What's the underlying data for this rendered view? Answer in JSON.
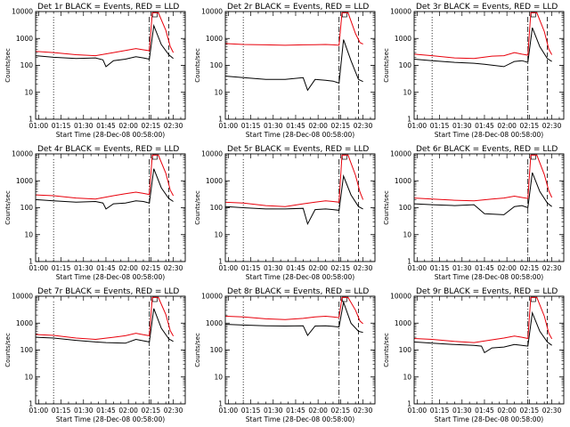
{
  "figure": {
    "xlabel": "Start Time (28-Dec-08 00:58:00)",
    "ylabel": "Counts/sec",
    "colors": {
      "events": "#000000",
      "lld": "#e8000b",
      "axes": "#000000"
    },
    "x_ticks": [
      "01:00",
      "01:15",
      "01:30",
      "01:45",
      "02:00",
      "02:15",
      "02:30"
    ],
    "y_ticks": [
      "1",
      "10",
      "100",
      "1000",
      "10000"
    ]
  },
  "chart_data": [
    {
      "type": "line",
      "title": "Det 1r BLACK = Events, RED = LLD",
      "xlim": [
        "00:58",
        "02:38"
      ],
      "ylim": [
        1,
        10000
      ],
      "yscale": "log",
      "series": [
        {
          "name": "Events",
          "color": "#000000",
          "x": [
            "00:58",
            "01:10",
            "01:25",
            "01:38",
            "01:43",
            "01:45",
            "01:50",
            "01:58",
            "02:05",
            "02:10",
            "02:14",
            "02:17",
            "02:22",
            "02:27",
            "02:30"
          ],
          "y": [
            230,
            200,
            180,
            190,
            160,
            90,
            150,
            170,
            210,
            190,
            170,
            3000,
            600,
            250,
            180
          ]
        },
        {
          "name": "LLD",
          "color": "#e8000b",
          "x": [
            "00:58",
            "01:10",
            "01:25",
            "01:38",
            "01:50",
            "01:58",
            "02:05",
            "02:10",
            "02:14",
            "02:16",
            "02:20",
            "02:25",
            "02:28",
            "02:30"
          ],
          "y": [
            330,
            300,
            250,
            230,
            300,
            360,
            420,
            380,
            350,
            9000,
            9000,
            2000,
            500,
            300
          ]
        }
      ]
    },
    {
      "type": "line",
      "title": "Det 2r BLACK = Events, RED = LLD",
      "xlim": [
        "00:58",
        "02:38"
      ],
      "ylim": [
        1,
        10000
      ],
      "yscale": "log",
      "series": [
        {
          "name": "Events",
          "color": "#000000",
          "x": [
            "00:58",
            "01:10",
            "01:25",
            "01:38",
            "01:50",
            "01:53",
            "01:58",
            "02:05",
            "02:10",
            "02:14",
            "02:17",
            "02:22",
            "02:27",
            "02:30"
          ],
          "y": [
            40,
            35,
            30,
            30,
            35,
            12,
            30,
            28,
            26,
            22,
            900,
            150,
            30,
            25
          ]
        },
        {
          "name": "LLD",
          "color": "#e8000b",
          "x": [
            "00:58",
            "01:10",
            "01:25",
            "01:38",
            "01:50",
            "01:58",
            "02:05",
            "02:10",
            "02:14",
            "02:16",
            "02:20",
            "02:25",
            "02:28",
            "02:30"
          ],
          "y": [
            650,
            600,
            580,
            560,
            580,
            590,
            600,
            580,
            560,
            9000,
            9000,
            1500,
            700,
            620
          ]
        }
      ]
    },
    {
      "type": "line",
      "title": "Det 3r BLACK = Events, RED = LLD",
      "xlim": [
        "00:58",
        "02:38"
      ],
      "ylim": [
        1,
        10000
      ],
      "yscale": "log",
      "series": [
        {
          "name": "Events",
          "color": "#000000",
          "x": [
            "00:58",
            "01:10",
            "01:25",
            "01:38",
            "01:45",
            "01:58",
            "02:05",
            "02:10",
            "02:14",
            "02:17",
            "02:22",
            "02:27",
            "02:30"
          ],
          "y": [
            170,
            150,
            130,
            120,
            110,
            90,
            140,
            150,
            130,
            2500,
            500,
            180,
            140
          ]
        },
        {
          "name": "LLD",
          "color": "#e8000b",
          "x": [
            "00:58",
            "01:10",
            "01:25",
            "01:38",
            "01:50",
            "01:58",
            "02:05",
            "02:10",
            "02:14",
            "02:16",
            "02:20",
            "02:25",
            "02:28",
            "02:30"
          ],
          "y": [
            260,
            230,
            190,
            180,
            220,
            230,
            300,
            260,
            240,
            9000,
            9000,
            1800,
            400,
            250
          ]
        }
      ]
    },
    {
      "type": "line",
      "title": "Det 4r BLACK = Events, RED = LLD",
      "xlim": [
        "00:58",
        "02:38"
      ],
      "ylim": [
        1,
        10000
      ],
      "yscale": "log",
      "series": [
        {
          "name": "Events",
          "color": "#000000",
          "x": [
            "00:58",
            "01:10",
            "01:25",
            "01:38",
            "01:43",
            "01:45",
            "01:50",
            "01:58",
            "02:05",
            "02:10",
            "02:14",
            "02:17",
            "02:22",
            "02:27",
            "02:30"
          ],
          "y": [
            200,
            180,
            160,
            170,
            150,
            90,
            140,
            150,
            180,
            170,
            150,
            2800,
            550,
            220,
            170
          ]
        },
        {
          "name": "LLD",
          "color": "#e8000b",
          "x": [
            "00:58",
            "01:10",
            "01:25",
            "01:38",
            "01:50",
            "01:58",
            "02:05",
            "02:10",
            "02:14",
            "02:16",
            "02:20",
            "02:25",
            "02:28",
            "02:30"
          ],
          "y": [
            300,
            280,
            230,
            210,
            280,
            330,
            380,
            340,
            310,
            9000,
            9000,
            1900,
            450,
            280
          ]
        }
      ]
    },
    {
      "type": "line",
      "title": "Det 5r BLACK = Events, RED = LLD",
      "xlim": [
        "00:58",
        "02:38"
      ],
      "ylim": [
        1,
        10000
      ],
      "yscale": "log",
      "series": [
        {
          "name": "Events",
          "color": "#000000",
          "x": [
            "00:58",
            "01:10",
            "01:25",
            "01:38",
            "01:50",
            "01:53",
            "01:58",
            "02:05",
            "02:10",
            "02:14",
            "02:17",
            "02:22",
            "02:27",
            "02:30"
          ],
          "y": [
            110,
            100,
            90,
            90,
            95,
            25,
            85,
            90,
            85,
            80,
            1500,
            300,
            110,
            90
          ]
        },
        {
          "name": "LLD",
          "color": "#e8000b",
          "x": [
            "00:58",
            "01:10",
            "01:25",
            "01:38",
            "01:50",
            "01:58",
            "02:05",
            "02:10",
            "02:14",
            "02:16",
            "02:20",
            "02:25",
            "02:28",
            "02:30"
          ],
          "y": [
            160,
            150,
            120,
            110,
            140,
            160,
            180,
            170,
            160,
            9000,
            9000,
            1600,
            380,
            200
          ]
        }
      ]
    },
    {
      "type": "line",
      "title": "Det 6r BLACK = Events, RED = LLD",
      "xlim": [
        "00:58",
        "02:38"
      ],
      "ylim": [
        1,
        10000
      ],
      "yscale": "log",
      "series": [
        {
          "name": "Events",
          "color": "#000000",
          "x": [
            "00:58",
            "01:10",
            "01:25",
            "01:38",
            "01:45",
            "01:58",
            "02:05",
            "02:10",
            "02:14",
            "02:17",
            "02:22",
            "02:27",
            "02:30"
          ],
          "y": [
            140,
            130,
            120,
            130,
            60,
            55,
            110,
            120,
            100,
            2000,
            400,
            150,
            110
          ]
        },
        {
          "name": "LLD",
          "color": "#e8000b",
          "x": [
            "00:58",
            "01:10",
            "01:25",
            "01:38",
            "01:50",
            "01:58",
            "02:05",
            "02:10",
            "02:14",
            "02:16",
            "02:20",
            "02:25",
            "02:28",
            "02:30"
          ],
          "y": [
            230,
            210,
            190,
            180,
            210,
            230,
            270,
            240,
            220,
            9000,
            9000,
            1700,
            420,
            240
          ]
        }
      ]
    },
    {
      "type": "line",
      "title": "Det 7r BLACK = Events, RED = LLD",
      "xlim": [
        "00:58",
        "02:38"
      ],
      "ylim": [
        1,
        10000
      ],
      "yscale": "log",
      "series": [
        {
          "name": "Events",
          "color": "#000000",
          "x": [
            "00:58",
            "01:10",
            "01:25",
            "01:38",
            "01:45",
            "01:58",
            "02:05",
            "02:10",
            "02:14",
            "02:17",
            "02:22",
            "02:27",
            "02:30"
          ],
          "y": [
            300,
            280,
            230,
            200,
            190,
            180,
            250,
            220,
            200,
            3500,
            650,
            260,
            210
          ]
        },
        {
          "name": "LLD",
          "color": "#e8000b",
          "x": [
            "00:58",
            "01:10",
            "01:25",
            "01:38",
            "01:50",
            "01:58",
            "02:05",
            "02:10",
            "02:14",
            "02:16",
            "02:20",
            "02:25",
            "02:28",
            "02:30"
          ],
          "y": [
            380,
            350,
            280,
            250,
            300,
            340,
            420,
            370,
            340,
            9000,
            9000,
            2100,
            520,
            330
          ]
        }
      ]
    },
    {
      "type": "line",
      "title": "Det 8r BLACK = Events, RED = LLD",
      "xlim": [
        "00:58",
        "02:38"
      ],
      "ylim": [
        1,
        10000
      ],
      "yscale": "log",
      "series": [
        {
          "name": "Events",
          "color": "#000000",
          "x": [
            "00:58",
            "01:10",
            "01:25",
            "01:38",
            "01:50",
            "01:53",
            "01:58",
            "02:05",
            "02:10",
            "02:14",
            "02:17",
            "02:22",
            "02:27",
            "02:30"
          ],
          "y": [
            900,
            850,
            800,
            780,
            800,
            350,
            780,
            800,
            760,
            720,
            6000,
            1000,
            500,
            450
          ]
        },
        {
          "name": "LLD",
          "color": "#e8000b",
          "x": [
            "00:58",
            "01:10",
            "01:25",
            "01:38",
            "01:50",
            "01:58",
            "02:05",
            "02:10",
            "02:14",
            "02:16",
            "02:20",
            "02:25",
            "02:28",
            "02:30"
          ],
          "y": [
            1800,
            1700,
            1450,
            1350,
            1500,
            1700,
            1800,
            1700,
            1600,
            9000,
            9000,
            3000,
            1200,
            950
          ]
        }
      ]
    },
    {
      "type": "line",
      "title": "Det 9r BLACK = Events, RED = LLD",
      "xlim": [
        "00:58",
        "02:38"
      ],
      "ylim": [
        1,
        10000
      ],
      "yscale": "log",
      "series": [
        {
          "name": "Events",
          "color": "#000000",
          "x": [
            "00:58",
            "01:10",
            "01:25",
            "01:38",
            "01:43",
            "01:45",
            "01:50",
            "01:58",
            "02:05",
            "02:10",
            "02:14",
            "02:17",
            "02:22",
            "02:27",
            "02:30"
          ],
          "y": [
            200,
            180,
            160,
            150,
            140,
            80,
            120,
            130,
            160,
            150,
            140,
            2400,
            500,
            200,
            150
          ]
        },
        {
          "name": "LLD",
          "color": "#e8000b",
          "x": [
            "00:58",
            "01:10",
            "01:25",
            "01:38",
            "01:50",
            "01:58",
            "02:05",
            "02:10",
            "02:14",
            "02:16",
            "02:20",
            "02:25",
            "02:28",
            "02:30"
          ],
          "y": [
            270,
            250,
            210,
            190,
            240,
            280,
            330,
            300,
            270,
            9000,
            9000,
            1800,
            420,
            260
          ]
        }
      ]
    }
  ]
}
